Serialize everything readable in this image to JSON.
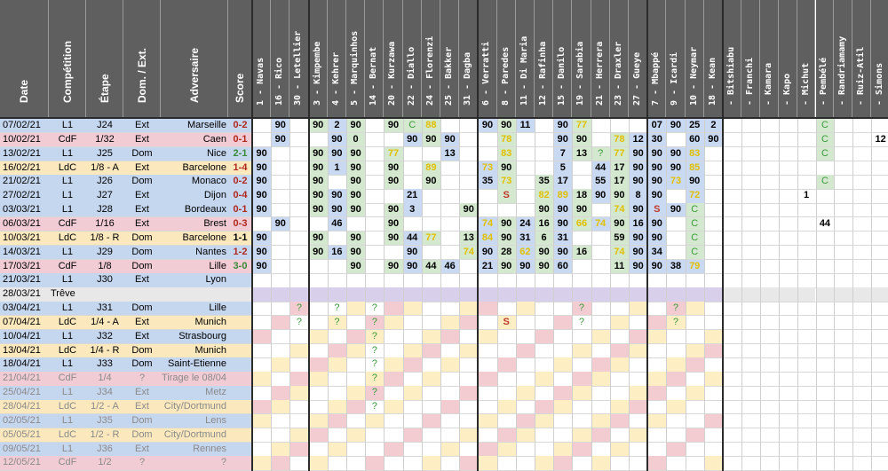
{
  "headers": {
    "date": "Date",
    "competition": "Compétition",
    "etape": "Étape",
    "domext": "Dom. / Ext.",
    "adversaire": "Adversaire",
    "score": "Score"
  },
  "players": [
    "1 - Navas",
    "16 - Rico",
    "30 - Letellier",
    "3 - Kimpembe",
    "4 - Kehrer",
    "5 - Marquinhos",
    "14 - Bernat",
    "20 - Kurzawa",
    "22 - Diallo",
    "24 - Florenzi",
    "25 - Bakker",
    "31 - Dagba",
    "6 - Verratti",
    "8 - Paredes",
    "11 - Di Maria",
    "12 - Rafinha",
    "15 - Danilo",
    "19 - Sarabia",
    "21 - Herrera",
    "23 - Draxler",
    "27 - Gueye",
    "7 - Mbappé",
    "9 - Icardi",
    "10 - Neymar",
    "18 - Kean",
    "- Bitshiabu",
    "- Franchi",
    "- Kamara",
    "- Kapo",
    "- Michut",
    "- Pembélé",
    "- Randriamamy",
    "- Ruiz-Atil",
    "- Simons"
  ],
  "matches": [
    {
      "date": "07/02/21",
      "comp": "L1",
      "etape": "J24",
      "dom": "Ext",
      "adv": "Marseille",
      "score": "0-2"
    },
    {
      "date": "10/02/21",
      "comp": "CdF",
      "etape": "1/32",
      "dom": "Ext",
      "adv": "Caen",
      "score": "0-1"
    },
    {
      "date": "13/02/21",
      "comp": "L1",
      "etape": "J25",
      "dom": "Dom",
      "adv": "Nice",
      "score": "2-1"
    },
    {
      "date": "16/02/21",
      "comp": "LdC",
      "etape": "1/8 - A",
      "dom": "Ext",
      "adv": "Barcelone",
      "score": "1-4"
    },
    {
      "date": "21/02/21",
      "comp": "L1",
      "etape": "J26",
      "dom": "Dom",
      "adv": "Monaco",
      "score": "0-2"
    },
    {
      "date": "27/02/21",
      "comp": "L1",
      "etape": "J27",
      "dom": "Ext",
      "adv": "Dijon",
      "score": "0-4"
    },
    {
      "date": "03/03/21",
      "comp": "L1",
      "etape": "J28",
      "dom": "Ext",
      "adv": "Bordeaux",
      "score": "0-1"
    },
    {
      "date": "06/03/21",
      "comp": "CdF",
      "etape": "1/16",
      "dom": "Ext",
      "adv": "Brest",
      "score": "0-3"
    },
    {
      "date": "10/03/21",
      "comp": "LdC",
      "etape": "1/8 - R",
      "dom": "Dom",
      "adv": "Barcelone",
      "score": "1-1"
    },
    {
      "date": "14/03/21",
      "comp": "L1",
      "etape": "J29",
      "dom": "Dom",
      "adv": "Nantes",
      "score": "1-2"
    },
    {
      "date": "17/03/21",
      "comp": "CdF",
      "etape": "1/8",
      "dom": "Dom",
      "adv": "Lille",
      "score": "3-0"
    },
    {
      "date": "21/03/21",
      "comp": "L1",
      "etape": "J30",
      "dom": "Ext",
      "adv": "Lyon",
      "score": ""
    },
    {
      "date": "28/03/21",
      "comp": "Trêve",
      "etape": "",
      "dom": "",
      "adv": "",
      "score": ""
    },
    {
      "date": "03/04/21",
      "comp": "L1",
      "etape": "J31",
      "dom": "Dom",
      "adv": "Lille",
      "score": ""
    },
    {
      "date": "07/04/21",
      "comp": "LdC",
      "etape": "1/4 - A",
      "dom": "Ext",
      "adv": "Munich",
      "score": ""
    },
    {
      "date": "10/04/21",
      "comp": "L1",
      "etape": "J32",
      "dom": "Ext",
      "adv": "Strasbourg",
      "score": ""
    },
    {
      "date": "13/04/21",
      "comp": "LdC",
      "etape": "1/4 - R",
      "dom": "Dom",
      "adv": "Munich",
      "score": ""
    },
    {
      "date": "18/04/21",
      "comp": "L1",
      "etape": "J33",
      "dom": "Dom",
      "adv": "Saint-Etienne",
      "score": ""
    },
    {
      "date": "21/04/21",
      "comp": "CdF",
      "etape": "1/4",
      "dom": "?",
      "adv": "Tirage le 08/04",
      "score": ""
    },
    {
      "date": "25/04/21",
      "comp": "L1",
      "etape": "J34",
      "dom": "Ext",
      "adv": "Metz",
      "score": ""
    },
    {
      "date": "28/04/21",
      "comp": "LdC",
      "etape": "1/2 - A",
      "dom": "Ext",
      "adv": "City/Dortmund",
      "score": ""
    },
    {
      "date": "02/05/21",
      "comp": "L1",
      "etape": "J35",
      "dom": "Dom",
      "adv": "Lens",
      "score": ""
    },
    {
      "date": "05/05/21",
      "comp": "LdC",
      "etape": "1/2 - R",
      "dom": "Dom",
      "adv": "City/Dortmund",
      "score": ""
    },
    {
      "date": "09/05/21",
      "comp": "L1",
      "etape": "J36",
      "dom": "Ext",
      "adv": "Rennes",
      "score": ""
    },
    {
      "date": "12/05/21",
      "comp": "CdF",
      "etape": "1/2",
      "dom": "?",
      "adv": "?",
      "score": ""
    }
  ],
  "minutes": [
    [
      "",
      "90",
      "",
      "90",
      "2",
      "90",
      "",
      "90",
      "C",
      "88",
      "",
      "",
      "90",
      "90",
      "11",
      "",
      "90",
      "77",
      "",
      "",
      "",
      "07",
      "90",
      "25",
      "2",
      "",
      "",
      "",
      "",
      "",
      "C",
      "",
      "",
      ""
    ],
    [
      "",
      "90",
      "",
      "",
      "90",
      "0",
      "",
      "",
      "90",
      "90",
      "90",
      "",
      "",
      "78",
      "",
      "",
      "90",
      "90",
      "",
      "78",
      "12",
      "30",
      "",
      "60",
      "90",
      "",
      "",
      "",
      "",
      "",
      "C",
      "",
      "",
      "12"
    ],
    [
      "90",
      "",
      "",
      "90",
      "90",
      "90",
      "",
      "77",
      "",
      "",
      "13",
      "",
      "",
      "83",
      "",
      "",
      "7",
      "13",
      "?",
      "77",
      "90",
      "90",
      "90",
      "83",
      "",
      "",
      "",
      "",
      "",
      "",
      "C",
      "",
      "",
      ""
    ],
    [
      "90",
      "",
      "",
      "90",
      "1",
      "90",
      "",
      "90",
      "",
      "89",
      "",
      "",
      "73",
      "90",
      "",
      "",
      "5",
      "",
      "44",
      "17",
      "90",
      "90",
      "90",
      "85",
      "",
      "",
      "",
      "",
      "",
      "",
      "",
      "",
      "",
      ""
    ],
    [
      "90",
      "",
      "",
      "90",
      "",
      "90",
      "",
      "90",
      "",
      "90",
      "",
      "",
      "35",
      "73",
      "",
      "35",
      "17",
      "",
      "55",
      "17",
      "90",
      "90",
      "73",
      "90",
      "",
      "",
      "",
      "",
      "",
      "",
      "C",
      "",
      "",
      ""
    ],
    [
      "90",
      "",
      "",
      "90",
      "90",
      "90",
      "",
      "",
      "21",
      "",
      "",
      "",
      "",
      "S",
      "",
      "82",
      "89",
      "18",
      "90",
      "90",
      "8",
      "90",
      "",
      "72",
      "",
      "",
      "",
      "",
      "",
      "1",
      "",
      "",
      "",
      ""
    ],
    [
      "90",
      "",
      "",
      "90",
      "90",
      "90",
      "",
      "90",
      "3",
      "",
      "",
      "90",
      "",
      "",
      "",
      "90",
      "90",
      "90",
      "",
      "74",
      "90",
      "S",
      "90",
      "C",
      "",
      "",
      "",
      "",
      "",
      "",
      "",
      "",
      "",
      ""
    ],
    [
      "",
      "90",
      "",
      "",
      "46",
      "",
      "",
      "90",
      "",
      "",
      "",
      "",
      "74",
      "90",
      "24",
      "16",
      "90",
      "66",
      "74",
      "90",
      "16",
      "90",
      "",
      "C",
      "",
      "",
      "",
      "",
      "",
      "",
      "44",
      "",
      "",
      ""
    ],
    [
      "90",
      "",
      "",
      "90",
      "",
      "90",
      "",
      "90",
      "44",
      "77",
      "",
      "13",
      "84",
      "90",
      "31",
      "6",
      "31",
      "",
      "",
      "59",
      "90",
      "90",
      "",
      "C",
      "",
      "",
      "",
      "",
      "",
      "",
      "",
      "",
      "",
      ""
    ],
    [
      "90",
      "",
      "",
      "90",
      "16",
      "90",
      "",
      "",
      "90",
      "",
      "",
      "74",
      "90",
      "28",
      "62",
      "90",
      "90",
      "16",
      "",
      "74",
      "90",
      "34",
      "",
      "C",
      "",
      "",
      "",
      "",
      "",
      "",
      "",
      "",
      "",
      ""
    ],
    [
      "90",
      "",
      "",
      "",
      "",
      "90",
      "",
      "90",
      "90",
      "44",
      "46",
      "",
      "21",
      "90",
      "90",
      "90",
      "60",
      "",
      "",
      "11",
      "90",
      "90",
      "38",
      "79",
      "",
      "",
      "",
      "",
      "",
      "",
      "",
      "",
      "",
      ""
    ],
    [
      "",
      "",
      "",
      "",
      "",
      "",
      "",
      "",
      "",
      "",
      "",
      "",
      "",
      "",
      "",
      "",
      "",
      "",
      "",
      "",
      "",
      "",
      "",
      "",
      "",
      "",
      "",
      "",
      "",
      "",
      "",
      "",
      "",
      ""
    ],
    [
      "",
      "",
      "",
      "",
      "",
      "",
      "",
      "",
      "",
      "",
      "",
      "",
      "",
      "",
      "",
      "",
      "",
      "",
      "",
      "",
      "",
      "",
      "",
      "",
      "",
      "",
      "",
      "",
      "",
      "",
      "",
      "",
      "",
      ""
    ],
    [
      "",
      "",
      "?",
      "",
      "?",
      "",
      "?",
      "",
      "",
      "",
      "",
      "",
      "",
      "",
      "",
      "",
      "",
      "?",
      "",
      "",
      "",
      "",
      "?",
      "",
      "",
      "",
      "",
      "",
      "",
      "",
      "",
      "",
      "",
      ""
    ],
    [
      "",
      "",
      "?",
      "",
      "?",
      "",
      "?",
      "",
      "",
      "",
      "",
      "",
      "",
      "S",
      "",
      "",
      "",
      "?",
      "",
      "",
      "",
      "",
      "?",
      "",
      "",
      "",
      "",
      "",
      "",
      "",
      "",
      "",
      "",
      ""
    ],
    [
      "",
      "",
      "",
      "",
      "",
      "",
      "?",
      "",
      "",
      "",
      "",
      "",
      "",
      "",
      "",
      "",
      "",
      "",
      "",
      "",
      "",
      "",
      "",
      "",
      "",
      "",
      "",
      "",
      "",
      "",
      "",
      "",
      "",
      ""
    ],
    [
      "",
      "",
      "",
      "",
      "",
      "",
      "?",
      "",
      "",
      "",
      "",
      "",
      "",
      "",
      "",
      "",
      "",
      "",
      "",
      "",
      "",
      "",
      "",
      "",
      "",
      "",
      "",
      "",
      "",
      "",
      "",
      "",
      "",
      ""
    ],
    [
      "",
      "",
      "",
      "",
      "",
      "",
      "?",
      "",
      "",
      "",
      "",
      "",
      "",
      "",
      "",
      "",
      "",
      "",
      "",
      "",
      "",
      "",
      "",
      "",
      "",
      "",
      "",
      "",
      "",
      "",
      "",
      "",
      "",
      ""
    ],
    [
      "",
      "",
      "",
      "",
      "",
      "",
      "?",
      "",
      "",
      "",
      "",
      "",
      "",
      "",
      "",
      "",
      "",
      "",
      "",
      "",
      "",
      "",
      "",
      "",
      "",
      "",
      "",
      "",
      "",
      "",
      "",
      "",
      "",
      ""
    ],
    [
      "",
      "",
      "",
      "",
      "",
      "",
      "?",
      "",
      "",
      "",
      "",
      "",
      "",
      "",
      "",
      "",
      "",
      "",
      "",
      "",
      "",
      "",
      "",
      "",
      "",
      "",
      "",
      "",
      "",
      "",
      "",
      "",
      "",
      ""
    ],
    [
      "",
      "",
      "",
      "",
      "",
      "",
      "?",
      "",
      "",
      "",
      "",
      "",
      "",
      "",
      "",
      "",
      "",
      "",
      "",
      "",
      "",
      "",
      "",
      "",
      "",
      "",
      "",
      "",
      "",
      "",
      "",
      "",
      "",
      ""
    ],
    [
      "",
      "",
      "",
      "",
      "",
      "",
      "",
      "",
      "",
      "",
      "",
      "",
      "",
      "",
      "",
      "",
      "",
      "",
      "",
      "",
      "",
      "",
      "",
      "",
      "",
      "",
      "",
      "",
      "",
      "",
      "",
      "",
      "",
      ""
    ],
    [
      "",
      "",
      "",
      "",
      "",
      "",
      "",
      "",
      "",
      "",
      "",
      "",
      "",
      "",
      "",
      "",
      "",
      "",
      "",
      "",
      "",
      "",
      "",
      "",
      "",
      "",
      "",
      "",
      "",
      "",
      "",
      "",
      "",
      ""
    ],
    [
      "",
      "",
      "",
      "",
      "",
      "",
      "",
      "",
      "",
      "",
      "",
      "",
      "",
      "",
      "",
      "",
      "",
      "",
      "",
      "",
      "",
      "",
      "",
      "",
      "",
      "",
      "",
      "",
      "",
      "",
      "",
      "",
      "",
      ""
    ],
    [
      "",
      "",
      "",
      "",
      "",
      "",
      "",
      "",
      "",
      "",
      "",
      "",
      "",
      "",
      "",
      "",
      "",
      "",
      "",
      "",
      "",
      "",
      "",
      "",
      "",
      "",
      "",
      "",
      "",
      "",
      "",
      "",
      "",
      ""
    ]
  ],
  "colors": {
    "header_bg": "#5f5f5f",
    "row_l1": "#c5d6ef",
    "row_cdf": "#f2ccd4",
    "row_ldc": "#fbe8bd",
    "row_treve": "#e8e8e8",
    "cell_blue": "#c9d9f2",
    "cell_green": "#d4e8cf",
    "cell_pink": "#f2ccd0",
    "cell_yellow": "#fdeec4",
    "cell_purple": "#d8d0ea",
    "score_win": "#3a8a3a",
    "score_loss": "#b0281e",
    "score_draw": "#000000",
    "text_yellow": "#e0c000",
    "text_green": "#3a9a3a",
    "text_red": "#c0392b"
  }
}
